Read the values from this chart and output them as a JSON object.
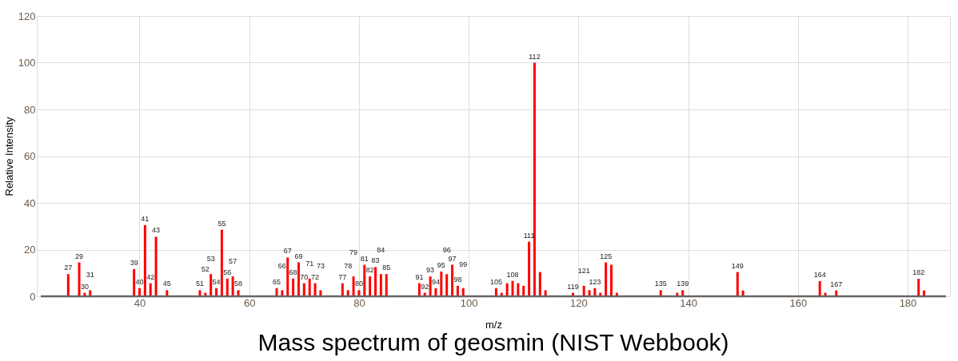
{
  "chart_data": {
    "type": "bar",
    "title": "Mass spectrum of geosmin (NIST Webbook)",
    "xlabel": "m/z",
    "ylabel": "Relative Intensity",
    "color": "#ff0000",
    "grid": true,
    "xlim": [
      22,
      187
    ],
    "ylim": [
      0,
      120
    ],
    "xticks": [
      40,
      60,
      80,
      100,
      120,
      140,
      160,
      180
    ],
    "yticks": [
      0,
      20,
      40,
      60,
      80,
      100,
      120
    ],
    "x": [
      27,
      29,
      30,
      31,
      39,
      40,
      41,
      42,
      43,
      45,
      51,
      52,
      53,
      54,
      55,
      56,
      57,
      58,
      65,
      66,
      67,
      68,
      69,
      70,
      71,
      72,
      73,
      77,
      78,
      79,
      80,
      81,
      82,
      83,
      84,
      85,
      91,
      92,
      93,
      94,
      95,
      96,
      97,
      98,
      99,
      105,
      106,
      107,
      108,
      109,
      110,
      111,
      112,
      113,
      114,
      119,
      121,
      122,
      123,
      124,
      125,
      126,
      127,
      135,
      138,
      139,
      149,
      150,
      164,
      165,
      167,
      182,
      183
    ],
    "values": [
      9.5,
      14.5,
      1.5,
      2.6,
      11.6,
      3.5,
      30.5,
      5.6,
      25.5,
      2.6,
      2.6,
      1.5,
      9.5,
      3.5,
      28.5,
      7.6,
      8.5,
      2.6,
      3.5,
      2.6,
      16.6,
      7.6,
      14.5,
      5.6,
      7.6,
      5.6,
      2.6,
      5.6,
      2.6,
      8.5,
      2.6,
      13.5,
      8.5,
      12.5,
      9.5,
      9.5,
      5.6,
      1.5,
      8.5,
      3.5,
      10.6,
      9.5,
      13.5,
      4.5,
      3.5,
      3.5,
      1.5,
      5.6,
      6.6,
      5.6,
      4.5,
      23.4,
      100,
      10.4,
      2.6,
      1.5,
      4.5,
      2.6,
      3.5,
      1.5,
      14.5,
      13.5,
      1.5,
      2.6,
      1.5,
      2.6,
      10.4,
      2.5,
      6.5,
      1.5,
      2.5,
      7.5,
      2.5
    ],
    "annotations": [
      {
        "text": "27",
        "x": 27,
        "y": 9.5
      },
      {
        "text": "29",
        "x": 29,
        "y": 14.5
      },
      {
        "text": "30",
        "x": 30,
        "y": 1.5
      },
      {
        "text": "31",
        "x": 31,
        "y": 2.6
      },
      {
        "text": "39",
        "x": 39,
        "y": 11.6
      },
      {
        "text": "40",
        "x": 40,
        "y": 3.5
      },
      {
        "text": "41",
        "x": 41,
        "y": 30.5
      },
      {
        "text": "42",
        "x": 42,
        "y": 5.6
      },
      {
        "text": "43",
        "x": 43,
        "y": 25.5
      },
      {
        "text": "45",
        "x": 45,
        "y": 2.6
      },
      {
        "text": "51",
        "x": 51,
        "y": 2.6
      },
      {
        "text": "52",
        "x": 52,
        "y": 1.5
      },
      {
        "text": "53",
        "x": 53,
        "y": 9.5
      },
      {
        "text": "54",
        "x": 54,
        "y": 3.5
      },
      {
        "text": "55",
        "x": 55,
        "y": 28.5
      },
      {
        "text": "56",
        "x": 56,
        "y": 7.6
      },
      {
        "text": "57",
        "x": 57,
        "y": 8.5
      },
      {
        "text": "58",
        "x": 58,
        "y": 2.6
      },
      {
        "text": "65",
        "x": 65,
        "y": 3.5
      },
      {
        "text": "66",
        "x": 66,
        "y": 2.6
      },
      {
        "text": "67",
        "x": 67,
        "y": 16.6
      },
      {
        "text": "68",
        "x": 68,
        "y": 7.6
      },
      {
        "text": "69",
        "x": 69,
        "y": 14.5
      },
      {
        "text": "70",
        "x": 70,
        "y": 5.6
      },
      {
        "text": "71",
        "x": 71,
        "y": 7.6
      },
      {
        "text": "72",
        "x": 72,
        "y": 5.6
      },
      {
        "text": "73",
        "x": 73,
        "y": 2.6
      },
      {
        "text": "77",
        "x": 77,
        "y": 5.6
      },
      {
        "text": "78",
        "x": 78,
        "y": 2.6
      },
      {
        "text": "79",
        "x": 79,
        "y": 8.5
      },
      {
        "text": "80",
        "x": 80,
        "y": 2.6
      },
      {
        "text": "81",
        "x": 81,
        "y": 13.5
      },
      {
        "text": "82",
        "x": 82,
        "y": 8.5
      },
      {
        "text": "83",
        "x": 83,
        "y": 12.5
      },
      {
        "text": "84",
        "x": 84,
        "y": 9.5
      },
      {
        "text": "85",
        "x": 85,
        "y": 9.5
      },
      {
        "text": "91",
        "x": 91,
        "y": 5.6
      },
      {
        "text": "92",
        "x": 92,
        "y": 1.5
      },
      {
        "text": "93",
        "x": 93,
        "y": 8.5
      },
      {
        "text": "94",
        "x": 94,
        "y": 3.5
      },
      {
        "text": "95",
        "x": 95,
        "y": 10.6
      },
      {
        "text": "96",
        "x": 96,
        "y": 9.5
      },
      {
        "text": "97",
        "x": 97,
        "y": 13.5
      },
      {
        "text": "98",
        "x": 98,
        "y": 4.5
      },
      {
        "text": "99",
        "x": 99,
        "y": 3.5
      },
      {
        "text": "105",
        "x": 105,
        "y": 3.5
      },
      {
        "text": "108",
        "x": 108,
        "y": 6.6
      },
      {
        "text": "111",
        "x": 111,
        "y": 23.4
      },
      {
        "text": "112",
        "x": 112,
        "y": 100
      },
      {
        "text": "119",
        "x": 119,
        "y": 1.5
      },
      {
        "text": "121",
        "x": 121,
        "y": 4.5
      },
      {
        "text": "123",
        "x": 123,
        "y": 3.5
      },
      {
        "text": "125",
        "x": 125,
        "y": 14.5
      },
      {
        "text": "135",
        "x": 135,
        "y": 2.6
      },
      {
        "text": "139",
        "x": 139,
        "y": 2.6
      },
      {
        "text": "149",
        "x": 149,
        "y": 10.4
      },
      {
        "text": "164",
        "x": 164,
        "y": 6.5
      },
      {
        "text": "167",
        "x": 167,
        "y": 2.5
      },
      {
        "text": "182",
        "x": 182,
        "y": 7.5
      }
    ]
  }
}
